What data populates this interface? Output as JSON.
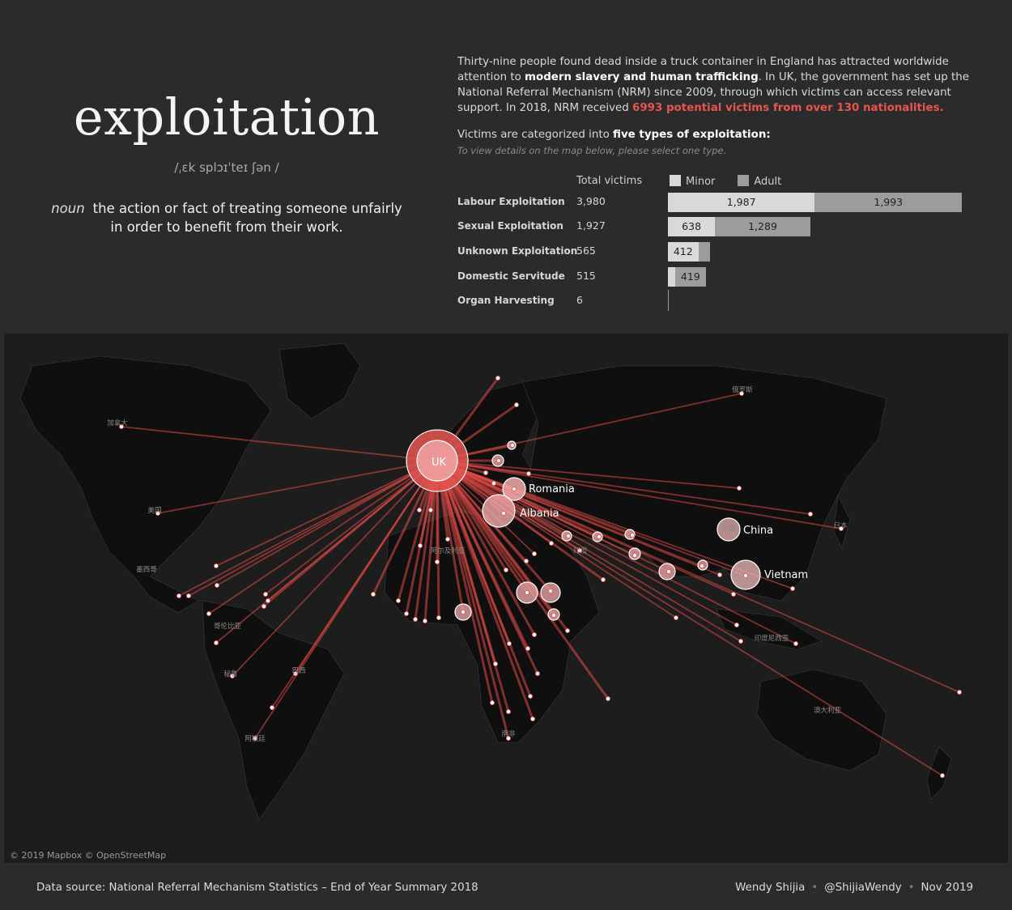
{
  "title": "exploitation",
  "phonetic": "/ˌɛk splɔɪˈteɪ ʃən /",
  "definition": {
    "pos": "noun",
    "line1": "the action or fact of treating someone unfairly",
    "line2": "in order to benefit from their work."
  },
  "intro": {
    "p1": "Thirty-nine people found dead inside a truck container in England has attracted worldwide attention to ",
    "bold": "modern slavery and human trafficking",
    "p2": ". In UK, the government has set up the National Referral Mechanism (NRM) since 2009,  through which victims can access relevant support. In 2018, NRM received ",
    "highlight": "6993 potential victims from over 130 nationalities",
    "p3": "."
  },
  "categories_heading": {
    "pre": "Victims are categorized into ",
    "bold": "five types of exploitation:"
  },
  "categories_note": "To view details on the map below, please select one type.",
  "table": {
    "total_header": "Total victims",
    "legend_minor": "Minor",
    "legend_adult": "Adult",
    "colors": {
      "minor": "#d9d9d9",
      "adult": "#9c9c9f"
    }
  },
  "chart_data": [
    {
      "type": "bar",
      "stacked": true,
      "orientation": "horizontal",
      "categories": [
        "Labour Exploitation",
        "Sexual Exploitation",
        "Unknown Exploitation",
        "Domestic Servitude",
        "Organ Harvesting"
      ],
      "totals": [
        3980,
        1927,
        565,
        515,
        6
      ],
      "total_labels": [
        "3,980",
        "1,927",
        "565",
        "515",
        "6"
      ],
      "series": [
        {
          "name": "Minor",
          "values": [
            1987,
            638,
            412,
            96,
            0
          ],
          "labels": [
            "1,987",
            "638",
            "412",
            "",
            ""
          ]
        },
        {
          "name": "Adult",
          "values": [
            1993,
            1289,
            153,
            419,
            6
          ],
          "labels": [
            "1,993",
            "1,289",
            "",
            "419",
            ""
          ]
        }
      ]
    },
    {
      "type": "scatter",
      "kind": "flow-map",
      "destination": "UK",
      "labeled_origins": [
        "UK",
        "Romania",
        "Albania",
        "China",
        "Vietnam"
      ]
    }
  ],
  "map": {
    "place_labels": [
      "俄罗斯",
      "加拿大",
      "美国",
      "墨西哥",
      "中国",
      "日本",
      "印度",
      "阿尔及利亚",
      "哥伦比亚",
      "秘鲁",
      "巴西",
      "阿根廷",
      "南非",
      "印度尼西亚",
      "澳大利亚"
    ],
    "attribution": "© 2019 Mapbox © OpenStreetMap"
  },
  "footer": {
    "source": "Data source:  National Referral Mechanism Statistics – End of Year Summary 2018",
    "author": "Wendy Shijia",
    "handle": "@ShijiaWendy",
    "date": "Nov 2019",
    "sep": "•"
  }
}
